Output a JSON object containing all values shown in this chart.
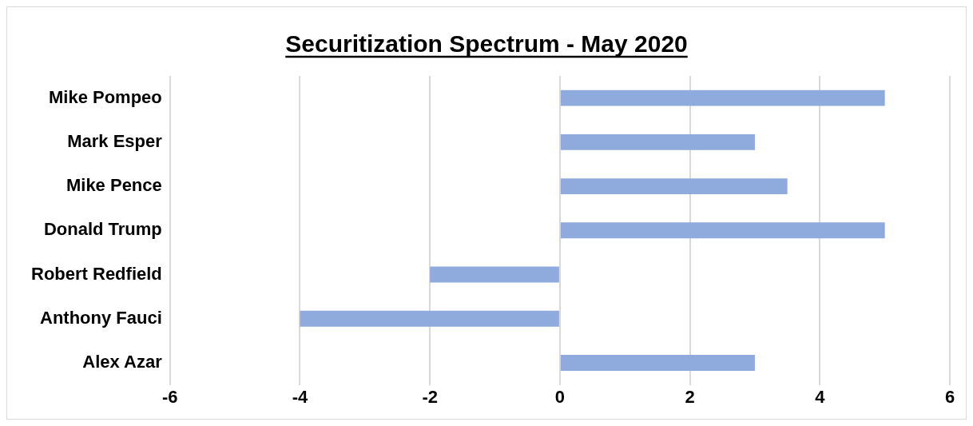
{
  "chart_data": {
    "type": "bar",
    "orientation": "horizontal",
    "title": "Securitization Spectrum - May 2020",
    "categories": [
      "Mike Pompeo",
      "Mark Esper",
      "Mike Pence",
      "Donald Trump",
      "Robert Redfield",
      "Anthony Fauci",
      "Alex Azar"
    ],
    "values": [
      5,
      3,
      3.5,
      5,
      -2,
      -4,
      3
    ],
    "color": "#8faadc",
    "xlim": [
      -6,
      6
    ],
    "xticks": [
      -6,
      -4,
      -2,
      0,
      2,
      4,
      6
    ],
    "grid": "x",
    "legend": false
  }
}
